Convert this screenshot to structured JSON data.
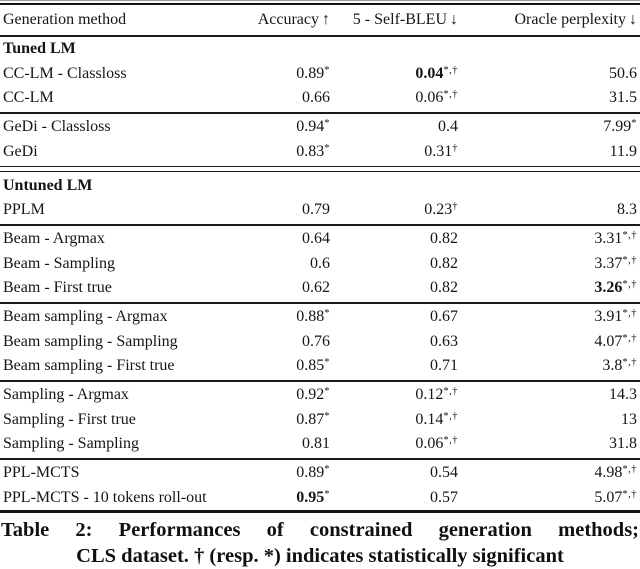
{
  "colors": {
    "text": "#151515",
    "background": "#ffffff",
    "rule": "#1a1a1a"
  },
  "table": {
    "columns": {
      "method": "Generation method",
      "accuracy": {
        "label": "Accuracy",
        "arrow": "↑"
      },
      "self_bleu": {
        "label": "5 - Self-BLEU",
        "arrow": "↓"
      },
      "oracle": {
        "label": "Oracle perplexity",
        "arrow": "↓"
      }
    },
    "rows": [
      {
        "type": "section",
        "rule_above": "none",
        "label": "Tuned LM"
      },
      {
        "type": "data",
        "rule_above": "none",
        "method": "CC-LM - Classloss",
        "accuracy": {
          "v": "0.89",
          "sup": "*",
          "bold": false
        },
        "self_bleu": {
          "v": "0.04",
          "sup": "*,†",
          "bold": true
        },
        "oracle": {
          "v": "50.6",
          "sup": "",
          "bold": false
        }
      },
      {
        "type": "data",
        "rule_above": "none",
        "method": "CC-LM",
        "accuracy": {
          "v": "0.66",
          "sup": "",
          "bold": false
        },
        "self_bleu": {
          "v": "0.06",
          "sup": "*,†",
          "bold": false
        },
        "oracle": {
          "v": "31.5",
          "sup": "",
          "bold": false
        }
      },
      {
        "type": "data",
        "rule_above": "single",
        "method": "GeDi - Classloss",
        "accuracy": {
          "v": "0.94",
          "sup": "*",
          "bold": false
        },
        "self_bleu": {
          "v": "0.4",
          "sup": "",
          "bold": false
        },
        "oracle": {
          "v": "7.99",
          "sup": "*",
          "bold": false
        }
      },
      {
        "type": "data",
        "rule_above": "none",
        "method": "GeDi",
        "accuracy": {
          "v": "0.83",
          "sup": "*",
          "bold": false
        },
        "self_bleu": {
          "v": "0.31",
          "sup": "†",
          "bold": false
        },
        "oracle": {
          "v": "11.9",
          "sup": "",
          "bold": false
        }
      },
      {
        "type": "section",
        "rule_above": "double",
        "label": "Untuned LM"
      },
      {
        "type": "data",
        "rule_above": "none",
        "method": "PPLM",
        "accuracy": {
          "v": "0.79",
          "sup": "",
          "bold": false
        },
        "self_bleu": {
          "v": "0.23",
          "sup": "†",
          "bold": false
        },
        "oracle": {
          "v": "8.3",
          "sup": "",
          "bold": false
        }
      },
      {
        "type": "data",
        "rule_above": "single",
        "method": "Beam - Argmax",
        "accuracy": {
          "v": "0.64",
          "sup": "",
          "bold": false
        },
        "self_bleu": {
          "v": "0.82",
          "sup": "",
          "bold": false
        },
        "oracle": {
          "v": "3.31",
          "sup": "*,†",
          "bold": false
        }
      },
      {
        "type": "data",
        "rule_above": "none",
        "method": "Beam - Sampling",
        "accuracy": {
          "v": "0.6",
          "sup": "",
          "bold": false
        },
        "self_bleu": {
          "v": "0.82",
          "sup": "",
          "bold": false
        },
        "oracle": {
          "v": "3.37",
          "sup": "*,†",
          "bold": false
        }
      },
      {
        "type": "data",
        "rule_above": "none",
        "method": "Beam - First true",
        "accuracy": {
          "v": "0.62",
          "sup": "",
          "bold": false
        },
        "self_bleu": {
          "v": "0.82",
          "sup": "",
          "bold": false
        },
        "oracle": {
          "v": "3.26",
          "sup": "*,†",
          "bold": true
        }
      },
      {
        "type": "data",
        "rule_above": "single",
        "method": "Beam sampling - Argmax",
        "accuracy": {
          "v": "0.88",
          "sup": "*",
          "bold": false
        },
        "self_bleu": {
          "v": "0.67",
          "sup": "",
          "bold": false
        },
        "oracle": {
          "v": "3.91",
          "sup": "*,†",
          "bold": false
        }
      },
      {
        "type": "data",
        "rule_above": "none",
        "method": "Beam sampling - Sampling",
        "accuracy": {
          "v": "0.76",
          "sup": "",
          "bold": false
        },
        "self_bleu": {
          "v": "0.63",
          "sup": "",
          "bold": false
        },
        "oracle": {
          "v": "4.07",
          "sup": "*,†",
          "bold": false
        }
      },
      {
        "type": "data",
        "rule_above": "none",
        "method": "Beam sampling - First true",
        "accuracy": {
          "v": "0.85",
          "sup": "*",
          "bold": false
        },
        "self_bleu": {
          "v": "0.71",
          "sup": "",
          "bold": false
        },
        "oracle": {
          "v": "3.8",
          "sup": "*,†",
          "bold": false
        }
      },
      {
        "type": "data",
        "rule_above": "single",
        "method": "Sampling - Argmax",
        "accuracy": {
          "v": "0.92",
          "sup": "*",
          "bold": false
        },
        "self_bleu": {
          "v": "0.12",
          "sup": "*,†",
          "bold": false
        },
        "oracle": {
          "v": "14.3",
          "sup": "",
          "bold": false
        }
      },
      {
        "type": "data",
        "rule_above": "none",
        "method": "Sampling - First true",
        "accuracy": {
          "v": "0.87",
          "sup": "*",
          "bold": false
        },
        "self_bleu": {
          "v": "0.14",
          "sup": "*,†",
          "bold": false
        },
        "oracle": {
          "v": "13",
          "sup": "",
          "bold": false
        }
      },
      {
        "type": "data",
        "rule_above": "none",
        "method": "Sampling - Sampling",
        "accuracy": {
          "v": "0.81",
          "sup": "",
          "bold": false
        },
        "self_bleu": {
          "v": "0.06",
          "sup": "*,†",
          "bold": false
        },
        "oracle": {
          "v": "31.8",
          "sup": "",
          "bold": false
        }
      },
      {
        "type": "data",
        "rule_above": "single",
        "method": "PPL-MCTS",
        "accuracy": {
          "v": "0.89",
          "sup": "*",
          "bold": false
        },
        "self_bleu": {
          "v": "0.54",
          "sup": "",
          "bold": false
        },
        "oracle": {
          "v": "4.98",
          "sup": "*,†",
          "bold": false
        }
      },
      {
        "type": "data",
        "rule_above": "none",
        "method": "PPL-MCTS - 10 tokens roll-out",
        "accuracy": {
          "v": "0.95",
          "sup": "*",
          "bold": true
        },
        "self_bleu": {
          "v": "0.57",
          "sup": "",
          "bold": false
        },
        "oracle": {
          "v": "5.07",
          "sup": "*,†",
          "bold": false
        }
      }
    ]
  },
  "caption": {
    "line1": "Table 2: Performances of constrained generation methods;",
    "line2": "CLS dataset. † (resp. *) indicates statistically significant"
  }
}
